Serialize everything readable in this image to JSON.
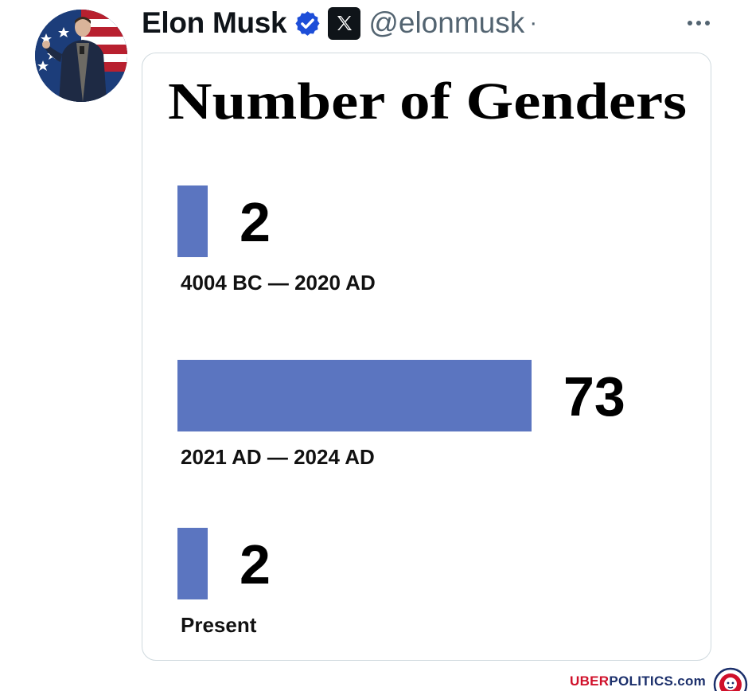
{
  "tweet": {
    "display_name": "Elon Musk",
    "handle": "@elonmusk",
    "separator": "·"
  },
  "icons": {
    "verified": "verified-badge-icon",
    "affiliation": "x-logo-icon",
    "more": "more-options-icon"
  },
  "colors": {
    "bar": "#5b75c0",
    "verified": "#1d4ed8",
    "handle": "#536471"
  },
  "chart_data": {
    "type": "bar",
    "orientation": "horizontal",
    "title": "Number of Genders",
    "categories": [
      "4004 BC — 2020 AD",
      "2021 AD — 2024 AD",
      "Present"
    ],
    "values": [
      2,
      73,
      2
    ],
    "value_labels": [
      "2",
      "73",
      "2"
    ],
    "xlim": [
      0,
      73
    ],
    "grid": false,
    "legend": "none",
    "bar_color": "#5b75c0"
  },
  "watermark": {
    "brand_red": "UBER",
    "brand_blue": "POLITICS.com"
  }
}
